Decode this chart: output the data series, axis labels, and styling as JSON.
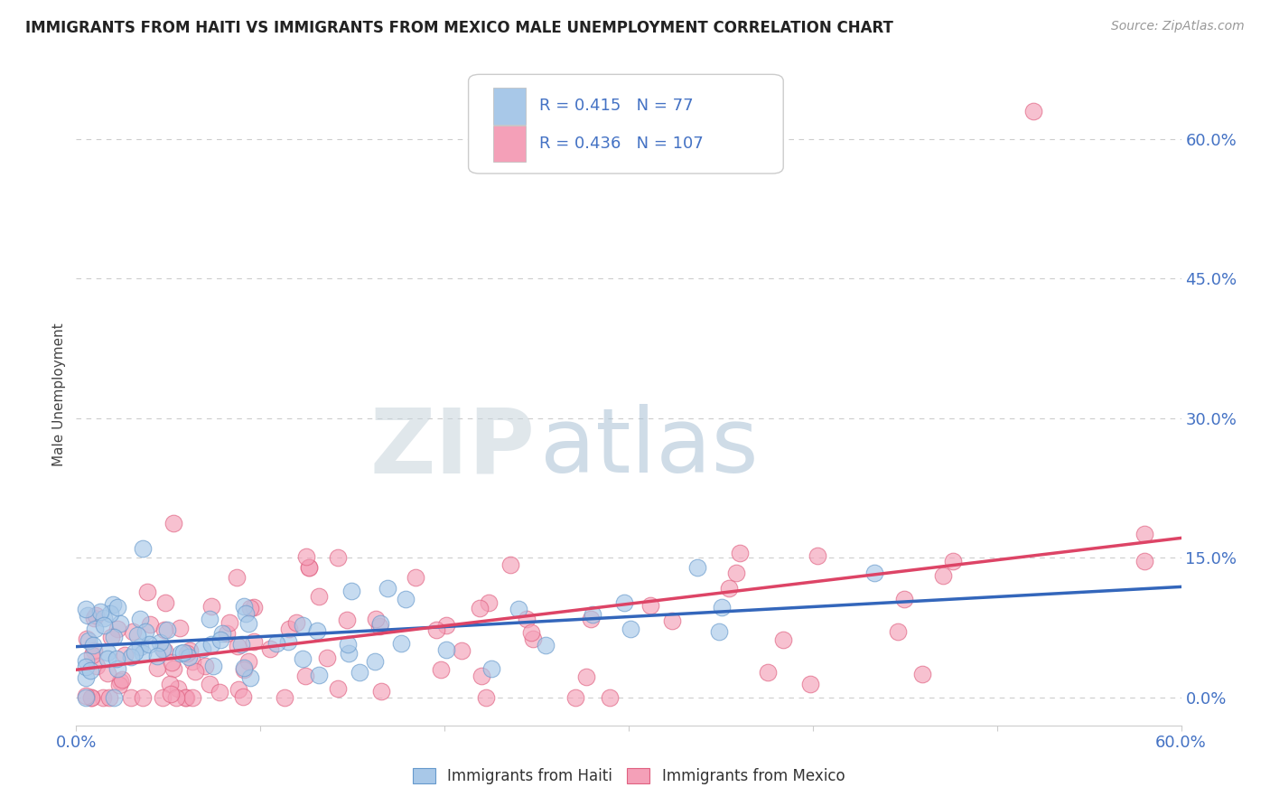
{
  "title": "IMMIGRANTS FROM HAITI VS IMMIGRANTS FROM MEXICO MALE UNEMPLOYMENT CORRELATION CHART",
  "source": "Source: ZipAtlas.com",
  "ylabel": "Male Unemployment",
  "haiti_R": 0.415,
  "haiti_N": 77,
  "mexico_R": 0.436,
  "mexico_N": 107,
  "haiti_color": "#a8c8e8",
  "mexico_color": "#f4a0b8",
  "haiti_edge_color": "#6699cc",
  "mexico_edge_color": "#e06080",
  "haiti_line_color": "#3366bb",
  "mexico_line_color": "#dd4466",
  "tick_color": "#4472c4",
  "legend_text_color": "#4472c4",
  "watermark_zip_color": "#cccccc",
  "watermark_atlas_color": "#aabbd0",
  "title_color": "#222222",
  "source_color": "#999999",
  "grid_color": "#cccccc",
  "xmin": 0.0,
  "xmax": 0.6,
  "ymin": -0.03,
  "ymax": 0.68,
  "ytick_vals": [
    0.0,
    0.15,
    0.3,
    0.45,
    0.6
  ],
  "ytick_labels": [
    "0.0%",
    "15.0%",
    "30.0%",
    "45.0%",
    "60.0%"
  ]
}
